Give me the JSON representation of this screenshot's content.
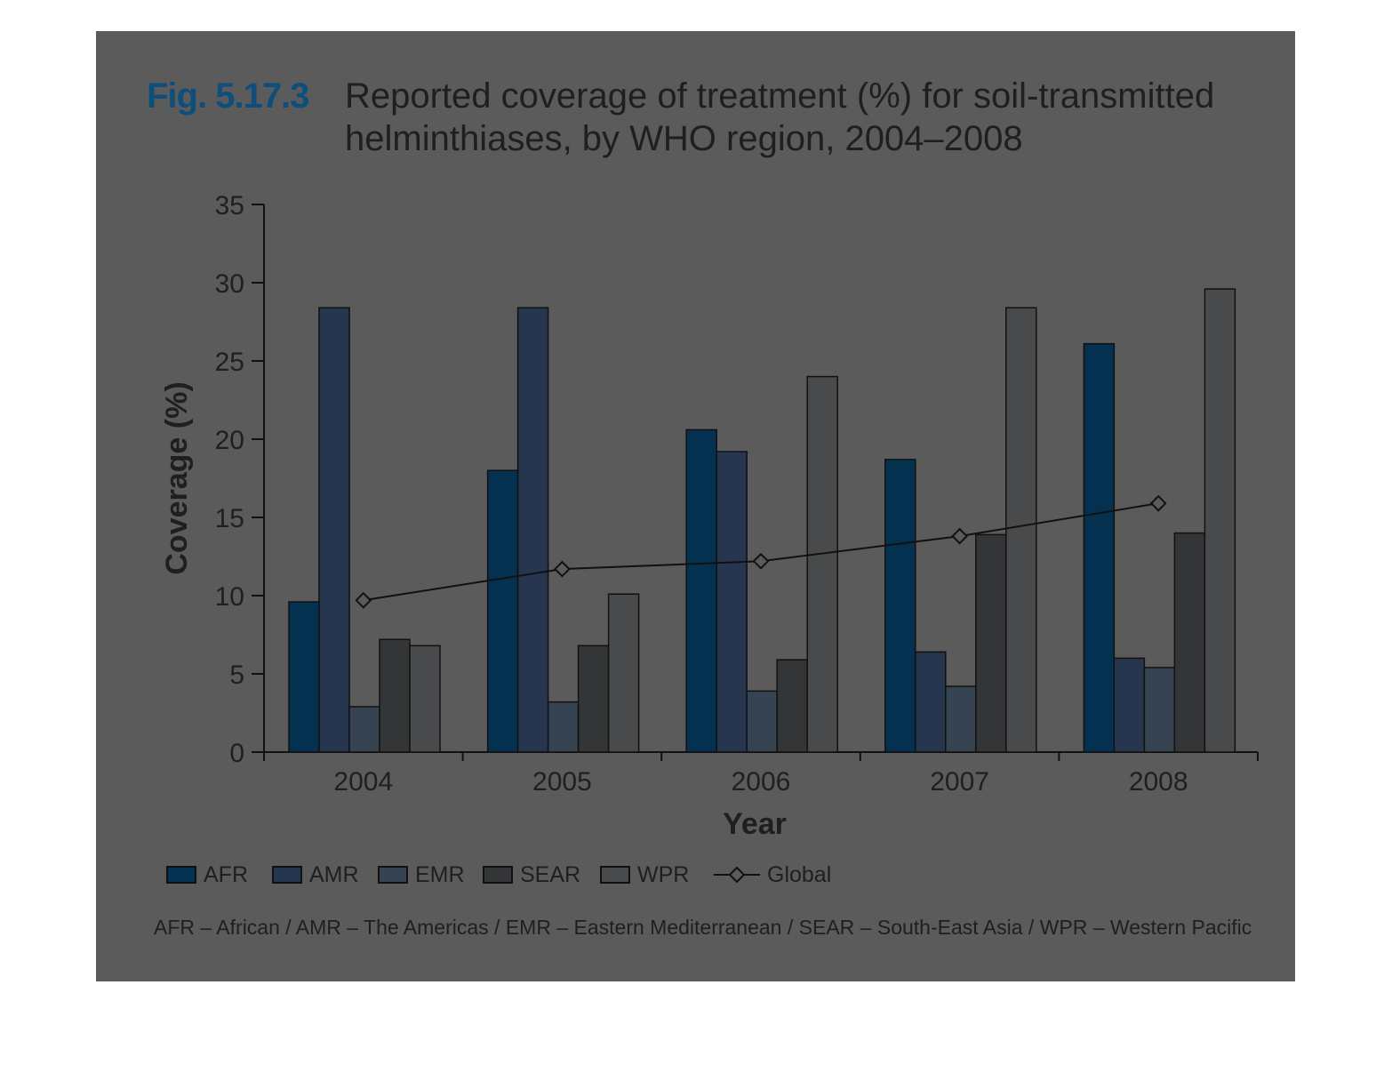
{
  "figure": {
    "number": "Fig. 5.17.3",
    "title": "Reported coverage of treatment (%) for soil-transmitted helminthiases, by WHO region, 2004–2008",
    "footnote": "AFR – African / AMR – The Americas / EMR – Eastern Mediterranean / SEAR – South-East Asia / WPR – Western Pacific"
  },
  "colors": {
    "panel": "#5b5b5b",
    "AFR": "#03314f",
    "AMR": "#25364e",
    "EMR": "#364452",
    "SEAR": "#333537",
    "WPR": "#484a4c",
    "Global": "#111111"
  },
  "chart_data": {
    "type": "bar",
    "title": "Reported coverage of treatment (%) for soil-transmitted helminthiases, by WHO region, 2004–2008",
    "xlabel": "Year",
    "ylabel": "Coverage (%)",
    "ylim": [
      0,
      35
    ],
    "yticks": [
      0,
      5,
      10,
      15,
      20,
      25,
      30,
      35
    ],
    "categories": [
      "2004",
      "2005",
      "2006",
      "2007",
      "2008"
    ],
    "series": [
      {
        "name": "AFR",
        "values": [
          9.6,
          18.0,
          20.6,
          18.7,
          26.1
        ]
      },
      {
        "name": "AMR",
        "values": [
          28.4,
          28.4,
          19.2,
          6.4,
          6.0
        ]
      },
      {
        "name": "EMR",
        "values": [
          2.9,
          3.2,
          3.9,
          4.2,
          5.4
        ]
      },
      {
        "name": "SEAR",
        "values": [
          7.2,
          6.8,
          5.9,
          13.9,
          14.0
        ]
      },
      {
        "name": "WPR",
        "values": [
          6.8,
          10.1,
          24.0,
          28.4,
          29.6
        ]
      }
    ],
    "line_series": {
      "name": "Global",
      "values": [
        9.7,
        11.7,
        12.2,
        13.8,
        15.9
      ]
    },
    "legend_position": "bottom",
    "grid": false
  }
}
